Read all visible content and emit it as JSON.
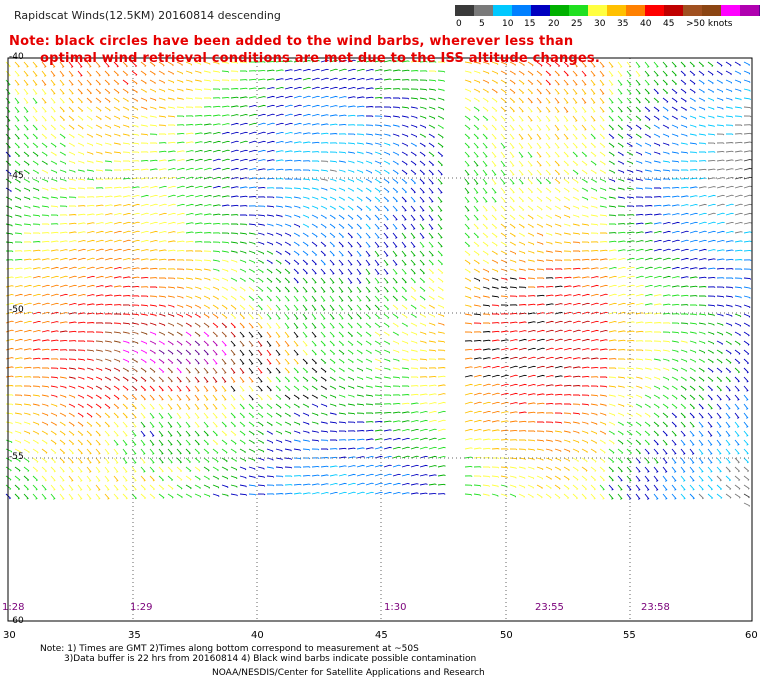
{
  "header": {
    "title": "Rapidscat Winds(12.5KM) 20160814 descending",
    "note_line1": "Note: black circles have been added to the wind barbs, wherever less than",
    "note_line2": "optimal wind retrieval conditions are met due to the ISS altitude changes."
  },
  "colorbar": {
    "colors": [
      "#3a3a3a",
      "#7a7a7a",
      "#00c8ff",
      "#0080ff",
      "#0000c0",
      "#00b000",
      "#20e020",
      "#ffff40",
      "#ffc000",
      "#ff8000",
      "#ff0000",
      "#c00000",
      "#a05020",
      "#8b4513",
      "#ff00ff",
      "#b000b0",
      "#600090"
    ],
    "labels": [
      "0",
      "5",
      "10",
      "15",
      "20",
      "25",
      "30",
      "35",
      "40",
      "45",
      ">50 knots"
    ],
    "unit_label": "knots"
  },
  "axes": {
    "lat_labels": [
      "-40",
      "-45",
      "-50",
      "-55",
      "-60"
    ],
    "lon_labels": [
      "30",
      "35",
      "40",
      "45",
      "50",
      "55",
      "60"
    ]
  },
  "times": [
    "1:28",
    "1:29",
    "1:30",
    "23:55",
    "23:58"
  ],
  "footer": {
    "line1": "Note: 1) Times are GMT 2)Times along bottom correspond to measurement at ~50S",
    "line2": "3)Data buffer is 22 hrs from 20160814 4) Black wind barbs indicate possible contamination",
    "line3": "NOAA/NESDIS/Center for Satellite Applications and Research"
  }
}
